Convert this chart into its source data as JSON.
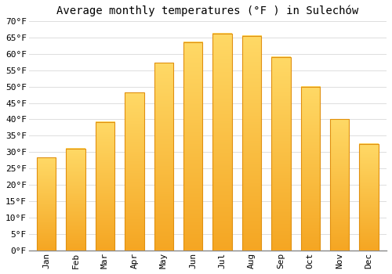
{
  "months": [
    "Jan",
    "Feb",
    "Mar",
    "Apr",
    "May",
    "Jun",
    "Jul",
    "Aug",
    "Sep",
    "Oct",
    "Nov",
    "Dec"
  ],
  "values": [
    28.4,
    31.1,
    39.2,
    48.2,
    57.2,
    63.5,
    66.2,
    65.5,
    59.0,
    50.0,
    40.1,
    32.5
  ],
  "bar_color_bottom": "#F5A623",
  "bar_color_top": "#FFD966",
  "bar_edge_color": "#E09010",
  "title": "Average monthly temperatures (°F ) in Sulechów",
  "ylim": [
    0,
    70
  ],
  "ytick_step": 5,
  "background_color": "#FFFFFF",
  "grid_color": "#DDDDDD",
  "title_fontsize": 10,
  "tick_fontsize": 8,
  "font_family": "monospace"
}
